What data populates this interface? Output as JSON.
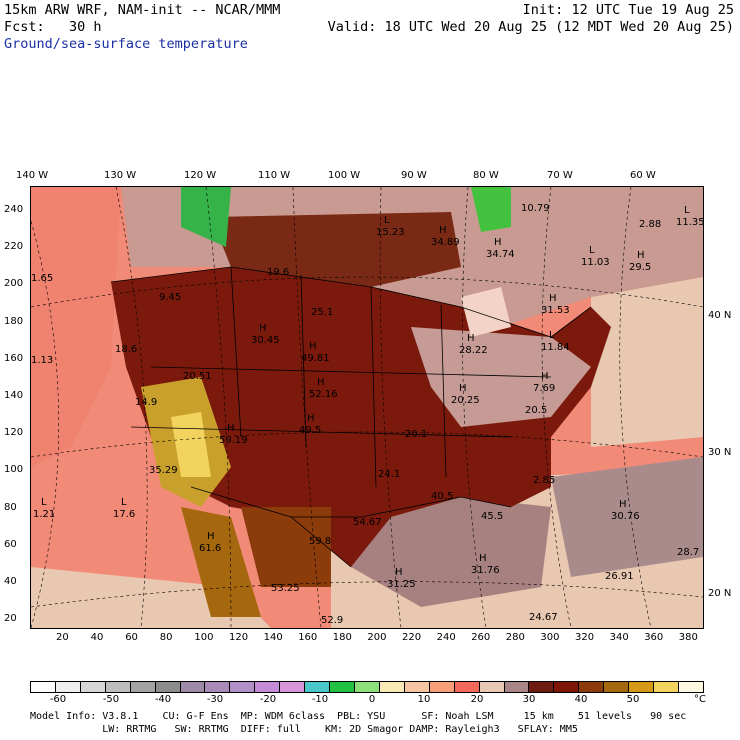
{
  "header": {
    "model_line": "15km ARW WRF, NAM-init -- NCAR/MMM",
    "init_line": "Init: 12 UTC Tue 19 Aug 25",
    "fcst_line": "Fcst:   30 h",
    "valid_line": "Valid: 18 UTC Wed 20 Aug 25 (12 MDT Wed 20 Aug 25)",
    "field_line": "Ground/sea-surface temperature"
  },
  "map": {
    "longitude_labels": [
      "140 W",
      "130 W",
      "120 W",
      "110 W",
      "100 W",
      "90 W",
      "80 W",
      "70 W",
      "60 W"
    ],
    "latitude_labels": [
      "40 N",
      "30 N",
      "20 N"
    ],
    "x_axis_ticks": [
      "20",
      "40",
      "60",
      "80",
      "100",
      "120",
      "140",
      "160",
      "180",
      "200",
      "220",
      "240",
      "260",
      "280",
      "300",
      "320",
      "340",
      "360",
      "380"
    ],
    "y_axis_ticks": [
      "240",
      "220",
      "200",
      "180",
      "160",
      "140",
      "120",
      "100",
      "80",
      "60",
      "40",
      "20"
    ],
    "extrema": [
      {
        "kind": "L",
        "value": "15.23"
      },
      {
        "kind": "H",
        "value": "34.89"
      },
      {
        "kind": "H",
        "value": "34.74"
      },
      {
        "kind": "",
        "value": "10.79"
      },
      {
        "kind": "L",
        "value": "11.03"
      },
      {
        "kind": "H",
        "value": "29.5"
      },
      {
        "kind": "L",
        "value": "11.35"
      },
      {
        "kind": "",
        "value": "2.88"
      },
      {
        "kind": "H",
        "value": "31.53"
      },
      {
        "kind": "L",
        "value": "11.84"
      },
      {
        "kind": "H",
        "value": "28.22"
      },
      {
        "kind": "H",
        "value": "20.25"
      },
      {
        "kind": "H",
        "value": "7.69"
      },
      {
        "kind": "",
        "value": "1.65"
      },
      {
        "kind": "",
        "value": "1.13"
      },
      {
        "kind": "",
        "value": "9.45"
      },
      {
        "kind": "",
        "value": "18.6"
      },
      {
        "kind": "",
        "value": "20.51"
      },
      {
        "kind": "H",
        "value": "30.45"
      },
      {
        "kind": "H",
        "value": "49.81"
      },
      {
        "kind": "H",
        "value": "52.16"
      },
      {
        "kind": "H",
        "value": "49.5"
      },
      {
        "kind": "H",
        "value": "59.19"
      },
      {
        "kind": "",
        "value": "25.1"
      },
      {
        "kind": "",
        "value": "19.6"
      },
      {
        "kind": "",
        "value": "14.9"
      },
      {
        "kind": "",
        "value": "35.29"
      },
      {
        "kind": "L",
        "value": "1.21"
      },
      {
        "kind": "L",
        "value": "17.6"
      },
      {
        "kind": "H",
        "value": "61.6"
      },
      {
        "kind": "",
        "value": "54.67"
      },
      {
        "kind": "",
        "value": "59.8"
      },
      {
        "kind": "",
        "value": "53.25"
      },
      {
        "kind": "",
        "value": "52.9"
      },
      {
        "kind": "H",
        "value": "31.25"
      },
      {
        "kind": "H",
        "value": "31.76"
      },
      {
        "kind": "H",
        "value": "30.76"
      },
      {
        "kind": "",
        "value": "40.5"
      },
      {
        "kind": "",
        "value": "45.5"
      },
      {
        "kind": "",
        "value": "26.91"
      },
      {
        "kind": "",
        "value": "24.67"
      },
      {
        "kind": "",
        "value": "28.7"
      },
      {
        "kind": "",
        "value": "20.5"
      },
      {
        "kind": "",
        "value": "24.1"
      },
      {
        "kind": "",
        "value": "2.85"
      },
      {
        "kind": "",
        "value": "20.1"
      }
    ]
  },
  "colorbar": {
    "colors": [
      "#ffffff",
      "#eeeeee",
      "#d6d6d6",
      "#bdbdbd",
      "#a3a3a3",
      "#8c8c8c",
      "#9c8aa8",
      "#a98ab8",
      "#b38fc7",
      "#c48cd6",
      "#d796d9",
      "#49c7c9",
      "#22c13f",
      "#8ee07a",
      "#fbe9b5",
      "#f6c6a3",
      "#f79f79",
      "#f46a5a",
      "#e8c7b3",
      "#a98585",
      "#6e1c12",
      "#7e1608",
      "#8c3b0a",
      "#a6680e",
      "#d59a16",
      "#f1d35e",
      "#fff8e0"
    ],
    "labels": [
      "-60",
      "-50",
      "-40",
      "-30",
      "-20",
      "-10",
      "0",
      "10",
      "20",
      "30",
      "40",
      "50",
      "°C"
    ]
  },
  "footer": {
    "line1": "Model Info: V3.8.1    CU: G-F Ens  MP: WDM 6class  PBL: YSU      SF: Noah LSM     15 km    51 levels   90 sec",
    "line2": "            LW: RRTMG   SW: RRTMG  DIFF: full    KM: 2D Smagor DAMP: Rayleigh3   SFLAY: MM5"
  }
}
